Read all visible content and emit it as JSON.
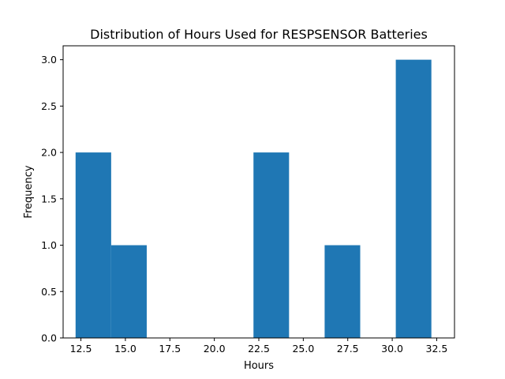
{
  "chart_data": {
    "type": "histogram",
    "title": "Distribution of Hours Used for RESPSENSOR Batteries",
    "xlabel": "Hours",
    "ylabel": "Frequency",
    "xlim": [
      11.5,
      33.5
    ],
    "ylim": [
      0,
      3.15
    ],
    "bins": [
      {
        "start": 12.2,
        "end": 14.2,
        "count": 2
      },
      {
        "start": 14.2,
        "end": 16.2,
        "count": 1
      },
      {
        "start": 16.2,
        "end": 18.2,
        "count": 0
      },
      {
        "start": 18.2,
        "end": 20.2,
        "count": 0
      },
      {
        "start": 20.2,
        "end": 22.2,
        "count": 0
      },
      {
        "start": 22.2,
        "end": 24.2,
        "count": 2
      },
      {
        "start": 24.2,
        "end": 26.2,
        "count": 0
      },
      {
        "start": 26.2,
        "end": 28.2,
        "count": 1
      },
      {
        "start": 28.2,
        "end": 30.2,
        "count": 0
      },
      {
        "start": 30.2,
        "end": 32.2,
        "count": 3
      }
    ],
    "x_ticks": [
      "12.5",
      "15.0",
      "17.5",
      "20.0",
      "22.5",
      "25.0",
      "27.5",
      "30.0",
      "32.5"
    ],
    "y_ticks": [
      "0.0",
      "0.5",
      "1.0",
      "1.5",
      "2.0",
      "2.5",
      "3.0"
    ],
    "bar_color": "#1f77b4",
    "grid": false,
    "legend": "none"
  }
}
